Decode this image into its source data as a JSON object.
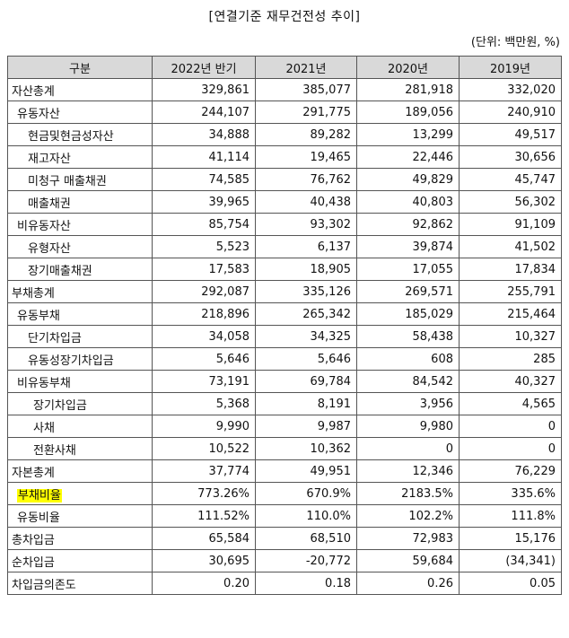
{
  "title": "[연결기준 재무건전성 추이]",
  "unit": "(단위: 백만원, %)",
  "headers": [
    "구분",
    "2022년 반기",
    "2021년",
    "2020년",
    "2019년"
  ],
  "highlight_color": "#ffff00",
  "header_bg": "#d9d9d9",
  "rows": [
    {
      "label": "자산총계",
      "values": [
        "329,861",
        "385,077",
        "281,918",
        "332,020"
      ]
    },
    {
      "label": "유동자산",
      "values": [
        "244,107",
        "291,775",
        "189,056",
        "240,910"
      ]
    },
    {
      "label": "현금및현금성자산",
      "values": [
        "34,888",
        "89,282",
        "13,299",
        "49,517"
      ]
    },
    {
      "label": "재고자산",
      "values": [
        "41,114",
        "19,465",
        "22,446",
        "30,656"
      ]
    },
    {
      "label": "미청구 매출채권",
      "values": [
        "74,585",
        "76,762",
        "49,829",
        "45,747"
      ]
    },
    {
      "label": "매출채권",
      "values": [
        "39,965",
        "40,438",
        "40,803",
        "56,302"
      ]
    },
    {
      "label": "비유동자산",
      "values": [
        "85,754",
        "93,302",
        "92,862",
        "91,109"
      ]
    },
    {
      "label": "유형자산",
      "values": [
        "5,523",
        "6,137",
        "39,874",
        "41,502"
      ]
    },
    {
      "label": "장기매출채권",
      "values": [
        "17,583",
        "18,905",
        "17,055",
        "17,834"
      ]
    },
    {
      "label": "부채총계",
      "values": [
        "292,087",
        "335,126",
        "269,571",
        "255,791"
      ]
    },
    {
      "label": "유동부채",
      "values": [
        "218,896",
        "265,342",
        "185,029",
        "215,464"
      ]
    },
    {
      "label": "단기차입금",
      "values": [
        "34,058",
        "34,325",
        "58,438",
        "10,327"
      ]
    },
    {
      "label": "유동성장기차입금",
      "values": [
        "5,646",
        "5,646",
        "608",
        "285"
      ]
    },
    {
      "label": "비유동부채",
      "values": [
        "73,191",
        "69,784",
        "84,542",
        "40,327"
      ]
    },
    {
      "label": "장기차입금",
      "values": [
        "5,368",
        "8,191",
        "3,956",
        "4,565"
      ]
    },
    {
      "label": "사채",
      "values": [
        "9,990",
        "9,987",
        "9,980",
        "0"
      ]
    },
    {
      "label": "전환사채",
      "values": [
        "10,522",
        "10,362",
        "0",
        "0"
      ]
    },
    {
      "label": "자본총계",
      "values": [
        "37,774",
        "49,951",
        "12,346",
        "76,229"
      ]
    },
    {
      "label": "부채비율",
      "values": [
        "773.26%",
        "670.9%",
        "2183.5%",
        "335.6%"
      ]
    },
    {
      "label": "유동비율",
      "values": [
        "111.52%",
        "110.0%",
        "102.2%",
        "111.8%"
      ]
    },
    {
      "label": "총차입금",
      "values": [
        "65,584",
        "68,510",
        "72,983",
        "15,176"
      ]
    },
    {
      "label": "순차입금",
      "values": [
        "30,695",
        "-20,772",
        "59,684",
        "(34,341)"
      ]
    },
    {
      "label": "차입금의존도",
      "values": [
        "0.20",
        "0.18",
        "0.26",
        "0.05"
      ]
    }
  ]
}
